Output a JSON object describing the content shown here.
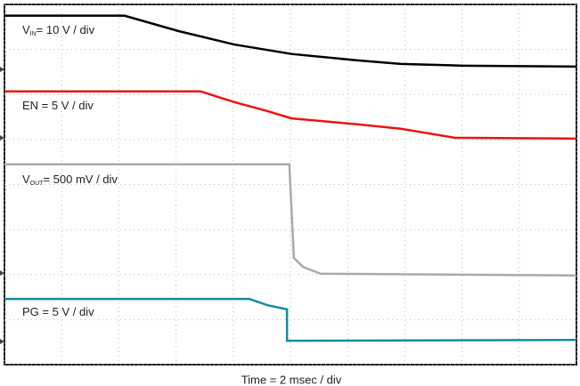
{
  "chart_data": {
    "type": "line",
    "xlabel": "Time = 2 msec / div",
    "xlim": [
      0,
      10
    ],
    "ylim": [
      0,
      8
    ],
    "xticks": [
      0,
      1,
      2,
      3,
      4,
      5,
      6,
      7,
      8,
      9,
      10
    ],
    "yticks": [
      0,
      1,
      2,
      3,
      4,
      5,
      6,
      7,
      8
    ],
    "grid": true,
    "annotations": [
      {
        "main": "V",
        "sub": "IN",
        "rest": "= 10 V / div"
      },
      {
        "main": "EN = 5 V / div"
      },
      {
        "main": "V",
        "sub": "OUT",
        "rest": "= 500 mV / div"
      },
      {
        "main": "PG = 5 V / div"
      }
    ],
    "series": [
      {
        "color": "#000000",
        "x": [
          0,
          2.1,
          3.04,
          4.02,
          5.02,
          6.15,
          6.93,
          8.02,
          10
        ],
        "values": [
          7.75,
          7.75,
          7.41,
          7.11,
          6.9,
          6.76,
          6.68,
          6.64,
          6.62
        ]
      },
      {
        "color": "#ee1111",
        "x": [
          0,
          3.43,
          4.02,
          4.6,
          5.02,
          6.15,
          6.93,
          7.87,
          10
        ],
        "values": [
          6.07,
          6.07,
          5.83,
          5.63,
          5.47,
          5.34,
          5.24,
          5.04,
          5.02
        ]
      },
      {
        "color": "#aaaaaa",
        "x": [
          0,
          4.98,
          5.06,
          5.22,
          5.53,
          10
        ],
        "values": [
          4.45,
          4.45,
          2.37,
          2.17,
          2.02,
          1.98
        ]
      },
      {
        "color": "#1a8a9a",
        "x": [
          0,
          4.28,
          4.6,
          4.94,
          4.94,
          10
        ],
        "values": [
          1.46,
          1.46,
          1.32,
          1.23,
          0.53,
          0.55
        ]
      }
    ]
  }
}
